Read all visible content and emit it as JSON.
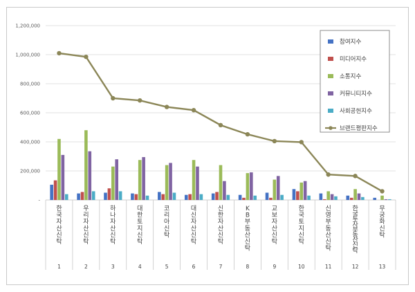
{
  "chart_data": {
    "type": "bar",
    "title": "",
    "xlabel": "",
    "ylabel": "",
    "ylim": [
      0,
      1200000
    ],
    "yticks": [
      0,
      200000,
      400000,
      600000,
      800000,
      1000000,
      1200000
    ],
    "ytick_labels": [
      "-",
      "200,000",
      "400,000",
      "600,000",
      "800,000",
      "1,000,000",
      "1,200,000"
    ],
    "grid": true,
    "legend_position": "top-right",
    "categories": [
      "한국자산신탁",
      "우리자산신탁",
      "하나자산신탁",
      "대한토지신탁",
      "코리아신탁",
      "대신자산신탁",
      "신한자산신탁",
      "KB부동산신탁",
      "교보자산신탁",
      "한국토지신탁",
      "신영부동산신탁",
      "한국투자부동산신탁",
      "무궁화신탁"
    ],
    "category_index": [
      "1",
      "2",
      "3",
      "4",
      "5",
      "6",
      "7",
      "8",
      "9",
      "10",
      "11",
      "12",
      "13"
    ],
    "series": [
      {
        "name": "참여지수",
        "type": "bar",
        "color": "#4472c4",
        "values": [
          105000,
          45000,
          50000,
          45000,
          55000,
          35000,
          45000,
          35000,
          50000,
          75000,
          45000,
          30000,
          15000
        ]
      },
      {
        "name": "미디어지수",
        "type": "bar",
        "color": "#c0504d",
        "values": [
          135000,
          55000,
          80000,
          40000,
          40000,
          40000,
          55000,
          15000,
          15000,
          60000,
          5000,
          15000,
          0
        ]
      },
      {
        "name": "소통지수",
        "type": "bar",
        "color": "#9bbb59",
        "values": [
          420000,
          480000,
          230000,
          275000,
          240000,
          275000,
          240000,
          185000,
          140000,
          120000,
          60000,
          75000,
          30000
        ]
      },
      {
        "name": "커뮤니티지수",
        "type": "bar",
        "color": "#8064a2",
        "values": [
          310000,
          335000,
          280000,
          295000,
          255000,
          230000,
          130000,
          190000,
          165000,
          130000,
          40000,
          45000,
          5000
        ]
      },
      {
        "name": "사회공헌지수",
        "type": "bar",
        "color": "#4bacc6",
        "values": [
          40000,
          60000,
          60000,
          30000,
          50000,
          40000,
          35000,
          30000,
          35000,
          30000,
          25000,
          20000,
          5000
        ]
      },
      {
        "name": "브랜드평판지수",
        "type": "line",
        "color": "#8b8657",
        "values": [
          1010000,
          985000,
          700000,
          685000,
          640000,
          618000,
          515000,
          452000,
          405000,
          398000,
          175000,
          165000,
          60000
        ]
      }
    ]
  }
}
